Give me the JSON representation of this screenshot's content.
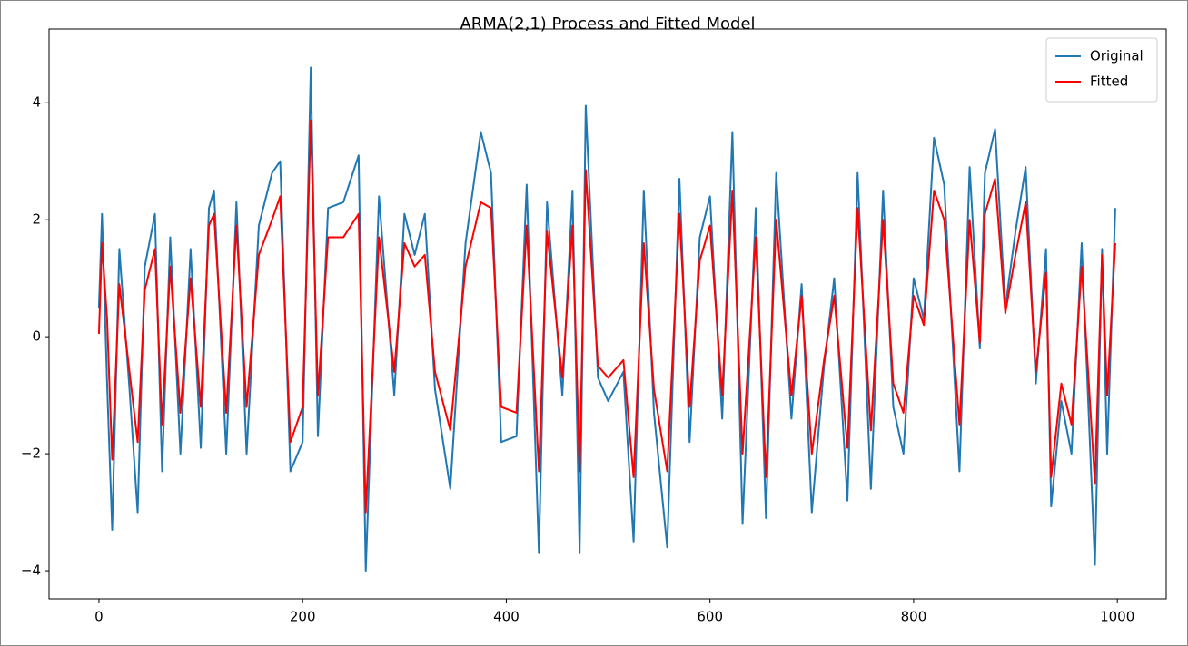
{
  "chart_data": {
    "type": "line",
    "title": "ARMA(2,1) Process and Fitted Model",
    "x": [
      0,
      3,
      8,
      13,
      20,
      30,
      38,
      45,
      55,
      62,
      70,
      80,
      90,
      100,
      108,
      113,
      125,
      135,
      145,
      157,
      170,
      178,
      188,
      200,
      208,
      215,
      225,
      240,
      255,
      262,
      275,
      290,
      300,
      310,
      320,
      330,
      345,
      360,
      375,
      385,
      395,
      410,
      420,
      432,
      440,
      455,
      465,
      472,
      478,
      490,
      500,
      515,
      525,
      535,
      545,
      558,
      570,
      580,
      590,
      600,
      612,
      622,
      632,
      645,
      655,
      665,
      680,
      690,
      700,
      712,
      722,
      735,
      745,
      758,
      770,
      780,
      790,
      800,
      810,
      820,
      830,
      845,
      855,
      865,
      870,
      880,
      890,
      900,
      910,
      920,
      930,
      935,
      945,
      955,
      965,
      978,
      985,
      990,
      998
    ],
    "series": [
      {
        "name": "Original",
        "color": "#1f77b4",
        "values": [
          0.5,
          2.1,
          -0.8,
          -3.3,
          1.5,
          -0.9,
          -3.0,
          1.2,
          2.1,
          -2.3,
          1.7,
          -2.0,
          1.5,
          -1.9,
          2.2,
          2.5,
          -2.0,
          2.3,
          -2.0,
          1.9,
          2.8,
          3.0,
          -2.3,
          -1.8,
          4.6,
          -1.7,
          2.2,
          2.3,
          3.1,
          -4.0,
          2.4,
          -1.0,
          2.1,
          1.4,
          2.1,
          -0.9,
          -2.6,
          1.6,
          3.5,
          2.8,
          -1.8,
          -1.7,
          2.6,
          -3.7,
          2.3,
          -1.0,
          2.5,
          -3.7,
          3.95,
          -0.7,
          -1.1,
          -0.6,
          -3.5,
          2.5,
          -1.3,
          -3.6,
          2.7,
          -1.8,
          1.7,
          2.4,
          -1.4,
          3.5,
          -3.2,
          2.2,
          -3.1,
          2.8,
          -1.4,
          0.9,
          -3.0,
          -0.5,
          1.0,
          -2.8,
          2.8,
          -2.6,
          2.5,
          -1.2,
          -2.0,
          1.0,
          0.3,
          3.4,
          2.6,
          -2.3,
          2.9,
          -0.2,
          2.8,
          3.55,
          0.5,
          1.8,
          2.9,
          -0.8,
          1.5,
          -2.9,
          -1.1,
          -2.0,
          1.6,
          -3.9,
          1.5,
          -2.0,
          2.2
        ]
      },
      {
        "name": "Fitted",
        "color": "#ff0000",
        "values": [
          0.05,
          1.6,
          0.3,
          -2.1,
          0.9,
          -0.6,
          -1.8,
          0.8,
          1.5,
          -1.5,
          1.2,
          -1.3,
          1.0,
          -1.2,
          1.9,
          2.1,
          -1.3,
          1.9,
          -1.2,
          1.4,
          2.0,
          2.4,
          -1.8,
          -1.2,
          3.7,
          -1.0,
          1.7,
          1.7,
          2.1,
          -3.0,
          1.7,
          -0.6,
          1.6,
          1.2,
          1.4,
          -0.6,
          -1.6,
          1.2,
          2.3,
          2.2,
          -1.2,
          -1.3,
          1.9,
          -2.3,
          1.8,
          -0.7,
          1.9,
          -2.3,
          2.85,
          -0.5,
          -0.7,
          -0.4,
          -2.4,
          1.6,
          -0.9,
          -2.3,
          2.1,
          -1.2,
          1.3,
          1.9,
          -1.0,
          2.5,
          -2.0,
          1.7,
          -2.4,
          2.0,
          -1.0,
          0.7,
          -2.0,
          -0.4,
          0.7,
          -1.9,
          2.2,
          -1.6,
          2.0,
          -0.8,
          -1.3,
          0.7,
          0.2,
          2.5,
          2.0,
          -1.5,
          2.0,
          -0.1,
          2.1,
          2.7,
          0.4,
          1.4,
          2.3,
          -0.6,
          1.1,
          -2.4,
          -0.8,
          -1.5,
          1.2,
          -2.5,
          1.4,
          -1.0,
          1.6
        ]
      }
    ],
    "xlim": [
      -49,
      1048
    ],
    "ylim": [
      -4.48,
      5.26
    ],
    "xticks": [
      0,
      200,
      400,
      600,
      800,
      1000
    ],
    "yticks": [
      {
        "value": -4,
        "label": "−4"
      },
      {
        "value": -2,
        "label": "−2"
      },
      0,
      2,
      4
    ],
    "legend": "upper right"
  }
}
